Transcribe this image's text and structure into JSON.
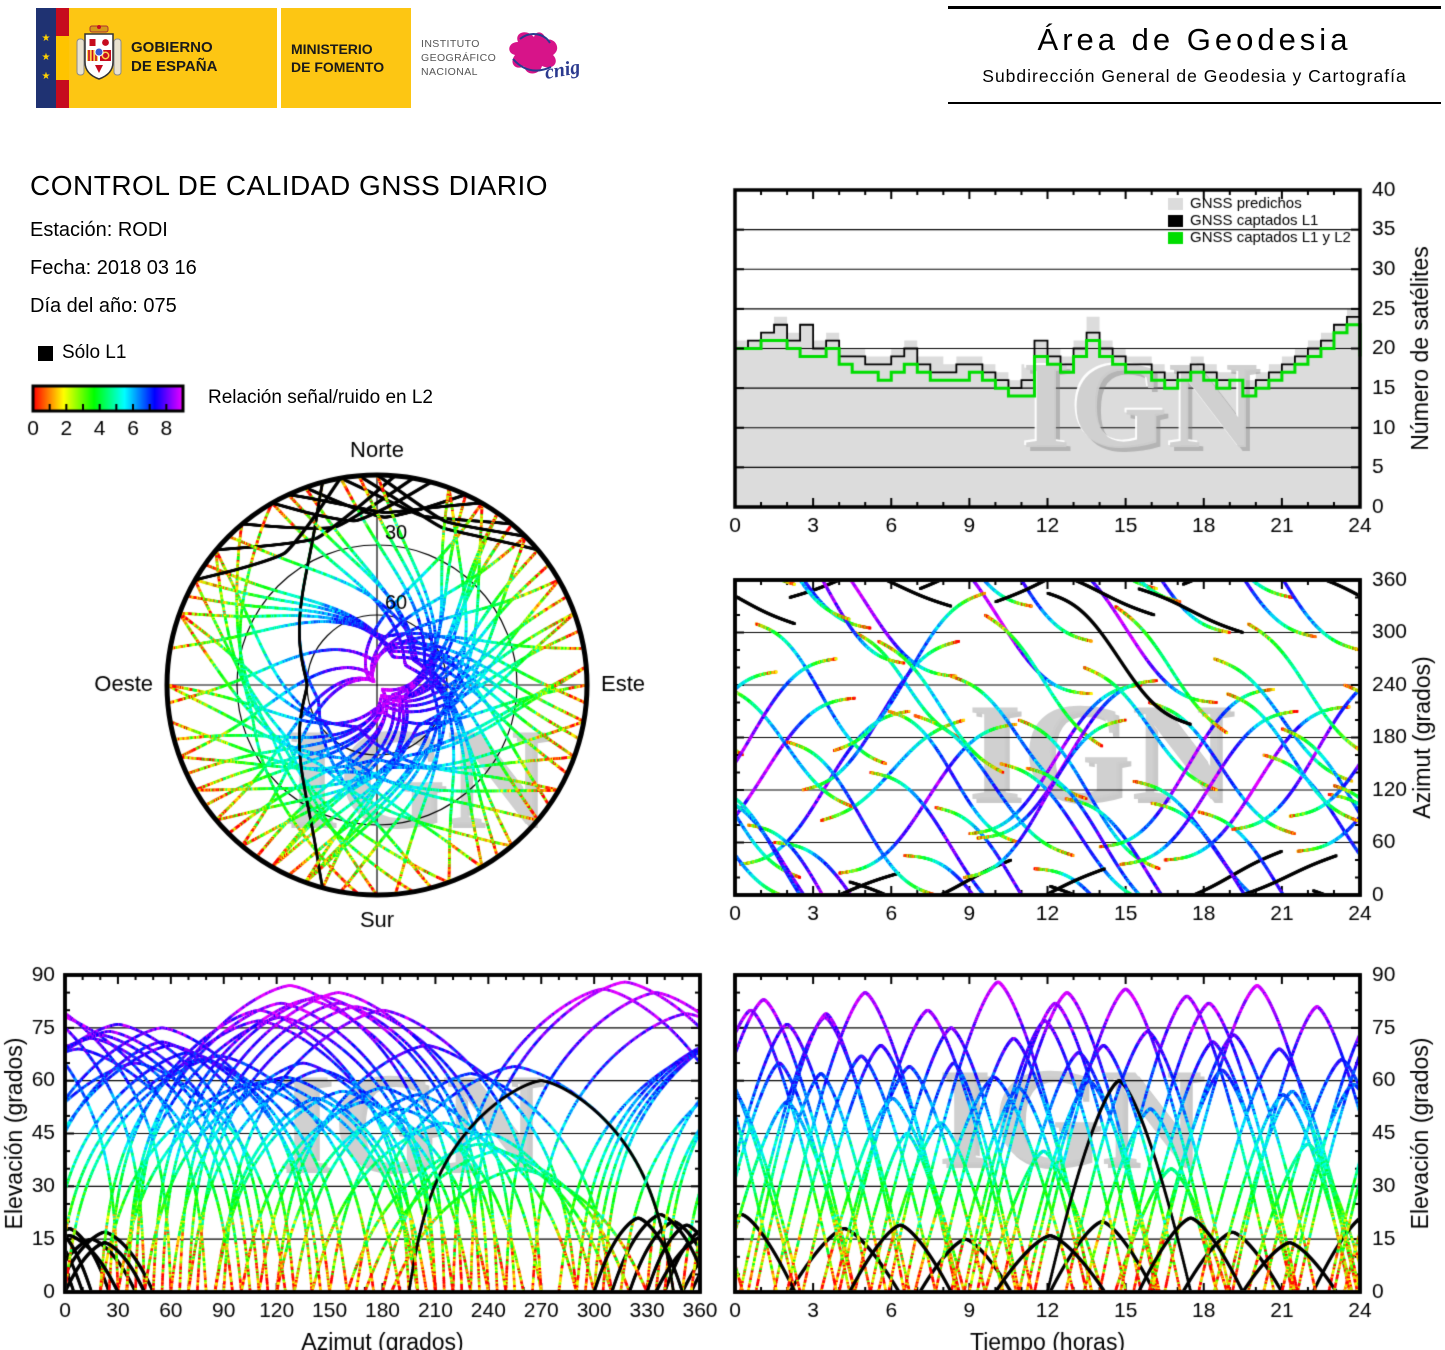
{
  "branding": {
    "gobierno": [
      "GOBIERNO",
      "DE ESPAÑA"
    ],
    "ministerio": [
      "MINISTERIO",
      "DE FOMENTO"
    ],
    "instituto": [
      "INSTITUTO",
      "GEOGRÁFICO",
      "NACIONAL"
    ],
    "cnig": "cnig",
    "eu_stars": "★"
  },
  "header_right": {
    "title": "Área de Geodesia",
    "subtitle": "Subdirección General de Geodesia y Cartografía"
  },
  "info": {
    "title": "CONTROL DE CALIDAD GNSS DIARIO",
    "station": "Estación: RODI",
    "date": "Fecha: 2018 03 16",
    "doy": "Día del año: 075"
  },
  "legend": {
    "solo_l1": "Sólo L1",
    "snr_label": "Relación señal/ruido en L2",
    "snr_tick_labels": [
      0,
      2,
      4,
      6,
      8
    ],
    "snr_range": [
      0,
      9
    ]
  },
  "watermark_text": "IGN",
  "colors": {
    "logo_yellow": "#fdc613",
    "flag_red": "#c60b1e",
    "flag_navy": "#1f3272",
    "predicted_fill": "#dcdcdc",
    "captured_l1": "#000000",
    "captured_l1l2": "#00dd00",
    "watermark_gray": "#cdcdcd",
    "cnig_magenta": "#d4007f",
    "cnig_blue": "#2b3a8f"
  },
  "chart_data": [
    {
      "id": "satellite-count",
      "type": "area",
      "ylabel": "Número de satélites",
      "xlim": [
        0,
        24
      ],
      "ylim": [
        0,
        40
      ],
      "xticks": [
        0,
        3,
        6,
        9,
        12,
        15,
        18,
        21,
        24
      ],
      "yticks": [
        0,
        5,
        10,
        15,
        20,
        25,
        30,
        35,
        40
      ],
      "xminor": 1,
      "grid": true,
      "legend_position": "top-right",
      "x": [
        0,
        0.5,
        1,
        1.5,
        2,
        2.5,
        3,
        3.5,
        4,
        4.5,
        5,
        5.5,
        6,
        6.5,
        7,
        7.5,
        8,
        8.5,
        9,
        9.5,
        10,
        10.5,
        11,
        11.5,
        12,
        12.5,
        13,
        13.5,
        14,
        14.5,
        15,
        15.5,
        16,
        16.5,
        17,
        17.5,
        18,
        18.5,
        19,
        19.5,
        20,
        20.5,
        21,
        21.5,
        22,
        22.5,
        23,
        23.5,
        24
      ],
      "series": [
        {
          "name": "GNSS predichos",
          "style": "area",
          "color": "#dcdcdc",
          "values": [
            21,
            21,
            22,
            24,
            22,
            23,
            21,
            22,
            20,
            20,
            19,
            19,
            20,
            21,
            19,
            19,
            18,
            19,
            19,
            18,
            17,
            16,
            18,
            21,
            20,
            19,
            21,
            24,
            21,
            20,
            19,
            19,
            18,
            17,
            18,
            19,
            18,
            17,
            17,
            16,
            17,
            18,
            19,
            20,
            21,
            22,
            23,
            25,
            21
          ]
        },
        {
          "name": "GNSS captados L1",
          "style": "step",
          "color": "#000000",
          "values": [
            20,
            21,
            22,
            23,
            21,
            23,
            20,
            21,
            19,
            19,
            18,
            18,
            19,
            20,
            18,
            17,
            17,
            18,
            18,
            17,
            16,
            15,
            16,
            21,
            19,
            18,
            20,
            22,
            20,
            19,
            18,
            18,
            17,
            16,
            17,
            18,
            17,
            16,
            16,
            15,
            16,
            17,
            18,
            19,
            20,
            21,
            23,
            24,
            20
          ]
        },
        {
          "name": "GNSS captados L1 y L2",
          "style": "step",
          "color": "#00dd00",
          "values": [
            20,
            20,
            21,
            21,
            20,
            19,
            19,
            20,
            18,
            17,
            17,
            16,
            17,
            18,
            17,
            16,
            16,
            16,
            17,
            16,
            15,
            14,
            14,
            19,
            18,
            17,
            19,
            21,
            19,
            18,
            17,
            17,
            16,
            15,
            16,
            17,
            16,
            15,
            16,
            14,
            15,
            16,
            17,
            18,
            19,
            20,
            22,
            23,
            19
          ]
        }
      ]
    },
    {
      "id": "skyplot",
      "type": "scatter-polar",
      "compass": {
        "n": "Norte",
        "s": "Sur",
        "e": "Este",
        "w": "Oeste"
      },
      "elevation_rings": [
        30,
        60
      ],
      "ring_labels": [
        "30",
        "60"
      ],
      "tracks_ref": "satellite_tracks"
    },
    {
      "id": "azimuth-time",
      "type": "scatter",
      "ylabel": "Azimut (grados)",
      "xlim": [
        0,
        24
      ],
      "ylim": [
        0,
        360
      ],
      "xticks": [
        0,
        3,
        6,
        9,
        12,
        15,
        18,
        21,
        24
      ],
      "yticks": [
        0,
        60,
        120,
        180,
        240,
        300,
        360
      ],
      "xminor": 1,
      "yminor": 20,
      "grid": true,
      "tracks_ref": "satellite_tracks"
    },
    {
      "id": "elevation-azimuth",
      "type": "scatter",
      "xlabel": "Azimut (grados)",
      "ylabel": "Elevación (grados)",
      "xlim": [
        0,
        360
      ],
      "ylim": [
        0,
        90
      ],
      "xticks": [
        0,
        30,
        60,
        90,
        120,
        150,
        180,
        210,
        240,
        270,
        300,
        330,
        360
      ],
      "yticks": [
        0,
        15,
        30,
        45,
        60,
        75,
        90
      ],
      "xminor": 10,
      "yminor": 5,
      "grid": true,
      "tracks_ref": "satellite_tracks"
    },
    {
      "id": "elevation-time",
      "type": "scatter",
      "xlabel": "Tiempo (horas)",
      "ylabel": "Elevación (grados)",
      "xlim": [
        0,
        24
      ],
      "ylim": [
        0,
        90
      ],
      "xticks": [
        0,
        3,
        6,
        9,
        12,
        15,
        18,
        21,
        24
      ],
      "yticks": [
        0,
        15,
        30,
        45,
        60,
        75,
        90
      ],
      "xminor": 1,
      "yminor": 5,
      "grid": true,
      "tracks_ref": "satellite_tracks"
    }
  ],
  "satellite_tracks": {
    "format": [
      "start_hour",
      "duration_hours",
      "azimuth_rise_deg",
      "azimuth_set_deg",
      "max_elevation_deg",
      "l1_only"
    ],
    "snr_scale": {
      "min": 0,
      "max": 9
    },
    "passes": [
      [
        0.2,
        6.5,
        35,
        210,
        78,
        0
      ],
      [
        0.8,
        5.0,
        310,
        150,
        62,
        0
      ],
      [
        1.5,
        7.0,
        60,
        250,
        85,
        0
      ],
      [
        2.1,
        4.2,
        340,
        25,
        18,
        1
      ],
      [
        2.6,
        6.0,
        120,
        290,
        70,
        0
      ],
      [
        3.3,
        5.5,
        85,
        200,
        55,
        0
      ],
      [
        4.0,
        6.8,
        25,
        195,
        80,
        0
      ],
      [
        4.6,
        4.0,
        300,
        180,
        45,
        0
      ],
      [
        5.2,
        6.2,
        140,
        330,
        75,
        0
      ],
      [
        5.9,
        5.0,
        210,
        60,
        65,
        0
      ],
      [
        6.5,
        7.2,
        45,
        230,
        88,
        0
      ],
      [
        7.1,
        3.5,
        350,
        40,
        15,
        1
      ],
      [
        7.7,
        6.0,
        100,
        290,
        72,
        0
      ],
      [
        8.3,
        5.2,
        250,
        110,
        58,
        0
      ],
      [
        9.0,
        6.6,
        70,
        240,
        82,
        0
      ],
      [
        9.6,
        4.5,
        320,
        170,
        40,
        0
      ],
      [
        10.2,
        6.0,
        150,
        350,
        68,
        0
      ],
      [
        10.9,
        5.4,
        200,
        30,
        60,
        0
      ],
      [
        11.5,
        7.0,
        30,
        220,
        86,
        0
      ],
      [
        12.1,
        4.0,
        10,
        320,
        20,
        1
      ],
      [
        12.7,
        6.3,
        110,
        300,
        74,
        0
      ],
      [
        13.4,
        5.1,
        260,
        120,
        52,
        0
      ],
      [
        14.0,
        6.7,
        55,
        235,
        84,
        0
      ],
      [
        14.6,
        4.3,
        330,
        185,
        35,
        0
      ],
      [
        15.3,
        6.1,
        130,
        340,
        71,
        0
      ],
      [
        15.9,
        5.6,
        220,
        70,
        63,
        0
      ],
      [
        16.5,
        7.1,
        40,
        215,
        87,
        0
      ],
      [
        17.2,
        3.8,
        355,
        50,
        17,
        1
      ],
      [
        17.8,
        6.2,
        95,
        280,
        69,
        0
      ],
      [
        18.4,
        5.3,
        270,
        130,
        56,
        0
      ],
      [
        19.1,
        6.5,
        75,
        255,
        81,
        0
      ],
      [
        19.7,
        4.6,
        310,
        160,
        42,
        0
      ],
      [
        20.3,
        6.0,
        160,
        355,
        66,
        0
      ],
      [
        21.0,
        5.5,
        190,
        20,
        59,
        0
      ],
      [
        21.6,
        7.0,
        50,
        225,
        83,
        0
      ],
      [
        22.2,
        4.1,
        5,
        310,
        22,
        1
      ],
      [
        22.8,
        6.4,
        115,
        305,
        76,
        0
      ],
      [
        23.4,
        5.2,
        240,
        100,
        54,
        0
      ],
      [
        0.5,
        6.0,
        80,
        265,
        79,
        0
      ],
      [
        3.8,
        5.8,
        165,
        345,
        64,
        0
      ],
      [
        6.9,
        6.1,
        205,
        45,
        61,
        0
      ],
      [
        9.3,
        6.9,
        65,
        245,
        85,
        0
      ],
      [
        12.0,
        5.5,
        345,
        195,
        60,
        1
      ],
      [
        16.0,
        6.3,
        105,
        295,
        73,
        0
      ],
      [
        18.9,
        5.0,
        230,
        85,
        57,
        0
      ],
      [
        21.3,
        6.6,
        90,
        270,
        80,
        0
      ],
      [
        2.0,
        5.7,
        175,
        0,
        67,
        0
      ],
      [
        5.5,
        4.8,
        290,
        140,
        48,
        0
      ],
      [
        8.8,
        6.2,
        20,
        200,
        77,
        0
      ],
      [
        11.2,
        5.9,
        145,
        335,
        70,
        0
      ],
      [
        14.8,
        6.8,
        35,
        210,
        82,
        0
      ],
      [
        19.5,
        3.6,
        0,
        45,
        14,
        1
      ],
      [
        23.0,
        5.4,
        125,
        315,
        65,
        0
      ],
      [
        4.4,
        3.9,
        15,
        330,
        19,
        1
      ],
      [
        10.0,
        4.2,
        335,
        30,
        16,
        1
      ],
      [
        15.5,
        4.0,
        350,
        300,
        21,
        1
      ]
    ]
  }
}
